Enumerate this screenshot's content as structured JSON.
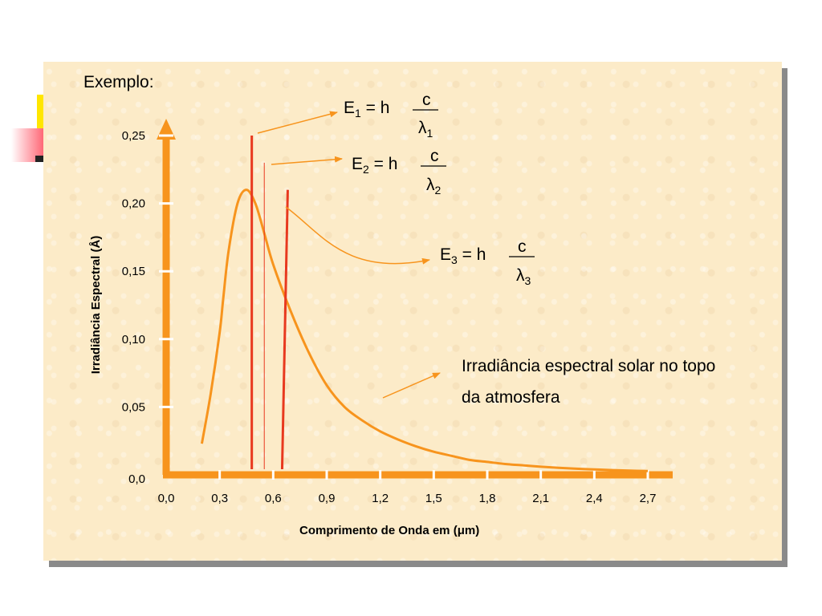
{
  "example_label": "Exemplo:",
  "chart_data": {
    "type": "line",
    "xlabel_text": "Comprimento de Onda em (",
    "xlabel_unit": "μ",
    "xlabel_tail": "m)",
    "ylabel": "Irradiância Espectral (Å)",
    "x_ticks": [
      "0,0",
      "0,3",
      "0,6",
      "0,9",
      "1,2",
      "1,5",
      "1,8",
      "2,1",
      "2,4",
      "2,7"
    ],
    "x_tick_values": [
      0.0,
      0.3,
      0.6,
      0.9,
      1.2,
      1.5,
      1.8,
      2.1,
      2.4,
      2.7
    ],
    "y_ticks": [
      "0,0",
      "0,05",
      "0,10",
      "0,15",
      "0,20",
      "0,25"
    ],
    "y_tick_values": [
      0.0,
      0.05,
      0.1,
      0.15,
      0.2,
      0.25
    ],
    "xlim": [
      0,
      2.7
    ],
    "ylim": [
      0,
      0.25
    ],
    "series": [
      {
        "color": "#f7941d",
        "x": [
          0.2,
          0.25,
          0.3,
          0.32,
          0.35,
          0.4,
          0.45,
          0.5,
          0.55,
          0.6,
          0.7,
          0.8,
          0.9,
          1.0,
          1.1,
          1.2,
          1.3,
          1.4,
          1.5,
          1.6,
          1.7,
          1.8,
          1.9,
          2.0,
          2.1,
          2.2,
          2.3,
          2.4,
          2.5,
          2.6,
          2.7
        ],
        "y": [
          0.023,
          0.06,
          0.105,
          0.13,
          0.165,
          0.2,
          0.21,
          0.2,
          0.178,
          0.155,
          0.12,
          0.09,
          0.066,
          0.05,
          0.04,
          0.032,
          0.026,
          0.021,
          0.017,
          0.014,
          0.011,
          0.0095,
          0.008,
          0.007,
          0.006,
          0.0052,
          0.0045,
          0.004,
          0.0035,
          0.0031,
          0.0028
        ]
      }
    ],
    "vertical_lines": [
      {
        "x": 0.48,
        "y": 0.25,
        "color": "#e8391f",
        "width": 3
      },
      {
        "x": 0.55,
        "y": 0.23,
        "color": "#e8391f",
        "width": 1
      },
      {
        "x": 0.65,
        "y": 0.21,
        "color": "#e8391f",
        "width": 3
      }
    ],
    "annotations": {
      "curve_label_line1": "Irradiância espectral solar no topo",
      "curve_label_line2": "da atmosfera",
      "equations": [
        {
          "prefix": "E",
          "sub": "1",
          "eq": " = h",
          "num": "c",
          "den": "λ",
          "den_sub": "1"
        },
        {
          "prefix": "E",
          "sub": "2",
          "eq": " = h",
          "num": "c",
          "den": "λ",
          "den_sub": "2"
        },
        {
          "prefix": "E",
          "sub": "3",
          "eq": " = h",
          "num": "c",
          "den": "λ",
          "den_sub": "3"
        }
      ]
    }
  }
}
